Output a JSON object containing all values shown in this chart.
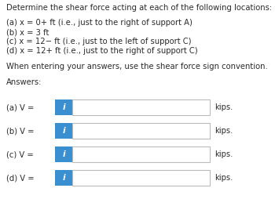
{
  "title": "Determine the shear force acting at each of the following locations:",
  "lines": [
    "(a) x = 0+ ft (i.e., just to the right of support A)",
    "(b) x = 3 ft",
    "(c) x = 12− ft (i.e., just to the left of support C)",
    "(d) x = 12+ ft (i.e., just to the right of support C)"
  ],
  "instruction": "When entering your answers, use the shear force sign convention.",
  "answers_label": "Answers:",
  "answer_rows": [
    "(a) V =",
    "(b) V =",
    "(c) V =",
    "(d) V ="
  ],
  "unit": "kips.",
  "icon_text": "i",
  "icon_bg": "#3a8fd1",
  "icon_fg": "#ffffff",
  "input_bg": "#ffffff",
  "input_border": "#bbbbbb",
  "bg_color": "#ffffff",
  "text_color": "#2b2b2b",
  "font_size": 7.2,
  "fig_width": 3.5,
  "fig_height": 2.77,
  "dpi": 100
}
